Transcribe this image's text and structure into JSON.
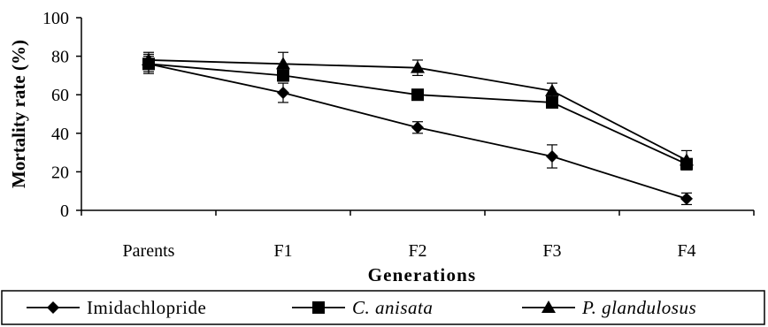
{
  "chart_data": {
    "type": "line",
    "title": "",
    "xlabel": "Generations",
    "ylabel": "Mortality rate (%)",
    "categories": [
      "Parents",
      "F1",
      "F2",
      "F3",
      "F4"
    ],
    "ylim": [
      0,
      100
    ],
    "yticks": [
      "0",
      "20",
      "40",
      "60",
      "80",
      "100"
    ],
    "grid": false,
    "legend_position": "bottom",
    "series": [
      {
        "name": "Imidachlopride",
        "marker": "diamond",
        "italic": false,
        "values": [
          76,
          61,
          43,
          28,
          6
        ],
        "errors": [
          5,
          5,
          3,
          6,
          3
        ]
      },
      {
        "name": "C. anisata",
        "marker": "square",
        "italic": true,
        "values": [
          76,
          70,
          60,
          56,
          24
        ],
        "errors": [
          4,
          3,
          2,
          2,
          2
        ]
      },
      {
        "name": "P. glandulosus",
        "marker": "triangle",
        "italic": true,
        "values": [
          78,
          76,
          74,
          62,
          26
        ],
        "errors": [
          4,
          6,
          4,
          4,
          5
        ]
      }
    ]
  }
}
